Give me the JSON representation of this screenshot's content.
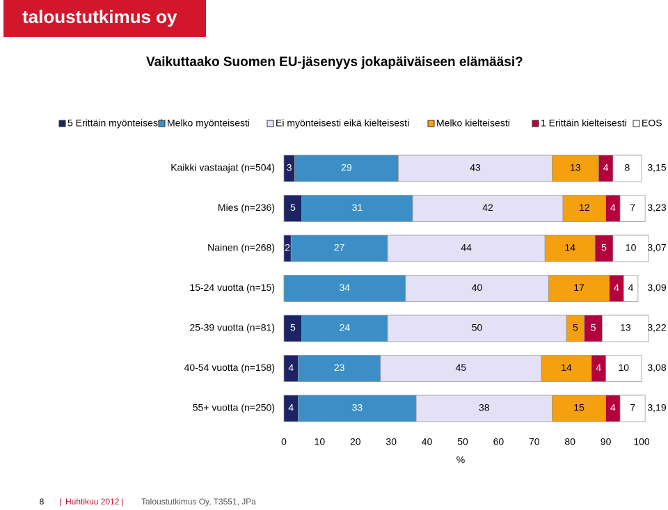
{
  "header": {
    "logo": "taloustutkimus oy"
  },
  "chart_data": {
    "type": "stacked_bar_horizontal",
    "title": "Vaikuttaako Suomen EU-jäsenyys jokapäiväiseen elämääsi?",
    "categories": [
      "Kaikki vastaajat (n=504)",
      "Mies (n=236)",
      "Nainen (n=268)",
      "15-24 vuotta (n=15)",
      "25-39 vuotta (n=81)",
      "40-54 vuotta (n=158)",
      "55+ vuotta (n=250)"
    ],
    "series": [
      {
        "name": "5 Erittäin myönteisesti",
        "color": "#1c2466",
        "values": [
          3,
          5,
          2,
          null,
          5,
          4,
          4
        ]
      },
      {
        "name": "Melko myönteisesti",
        "color": "#3b8fc6",
        "values": [
          29,
          31,
          27,
          34,
          24,
          23,
          33
        ]
      },
      {
        "name": "Ei myönteisesti eikä kielteisesti",
        "color": "#e4e1f6",
        "values": [
          43,
          42,
          44,
          40,
          50,
          45,
          38
        ]
      },
      {
        "name": "Melko kielteisesti",
        "color": "#f5a00f",
        "values": [
          13,
          12,
          14,
          17,
          5,
          14,
          15
        ]
      },
      {
        "name": "1 Erittäin kielteisesti",
        "color": "#b5003e",
        "values": [
          4,
          4,
          5,
          4,
          5,
          4,
          4
        ]
      },
      {
        "name": "EOS",
        "color": "#ffffff",
        "values": [
          8,
          7,
          10,
          4,
          13,
          10,
          7
        ]
      }
    ],
    "means": [
      "3,15",
      "3,23",
      "3,07",
      "3,09",
      "3,22",
      "3,08",
      "3,19"
    ],
    "xlim": [
      0,
      100
    ],
    "xticks": [
      0,
      10,
      20,
      30,
      40,
      50,
      60,
      70,
      80,
      90,
      100
    ],
    "xlabel": "%"
  },
  "footer": {
    "page": "8",
    "date": "Huhtikuu 2012",
    "source": "Taloustutkimus Oy, T3551, JPa"
  }
}
